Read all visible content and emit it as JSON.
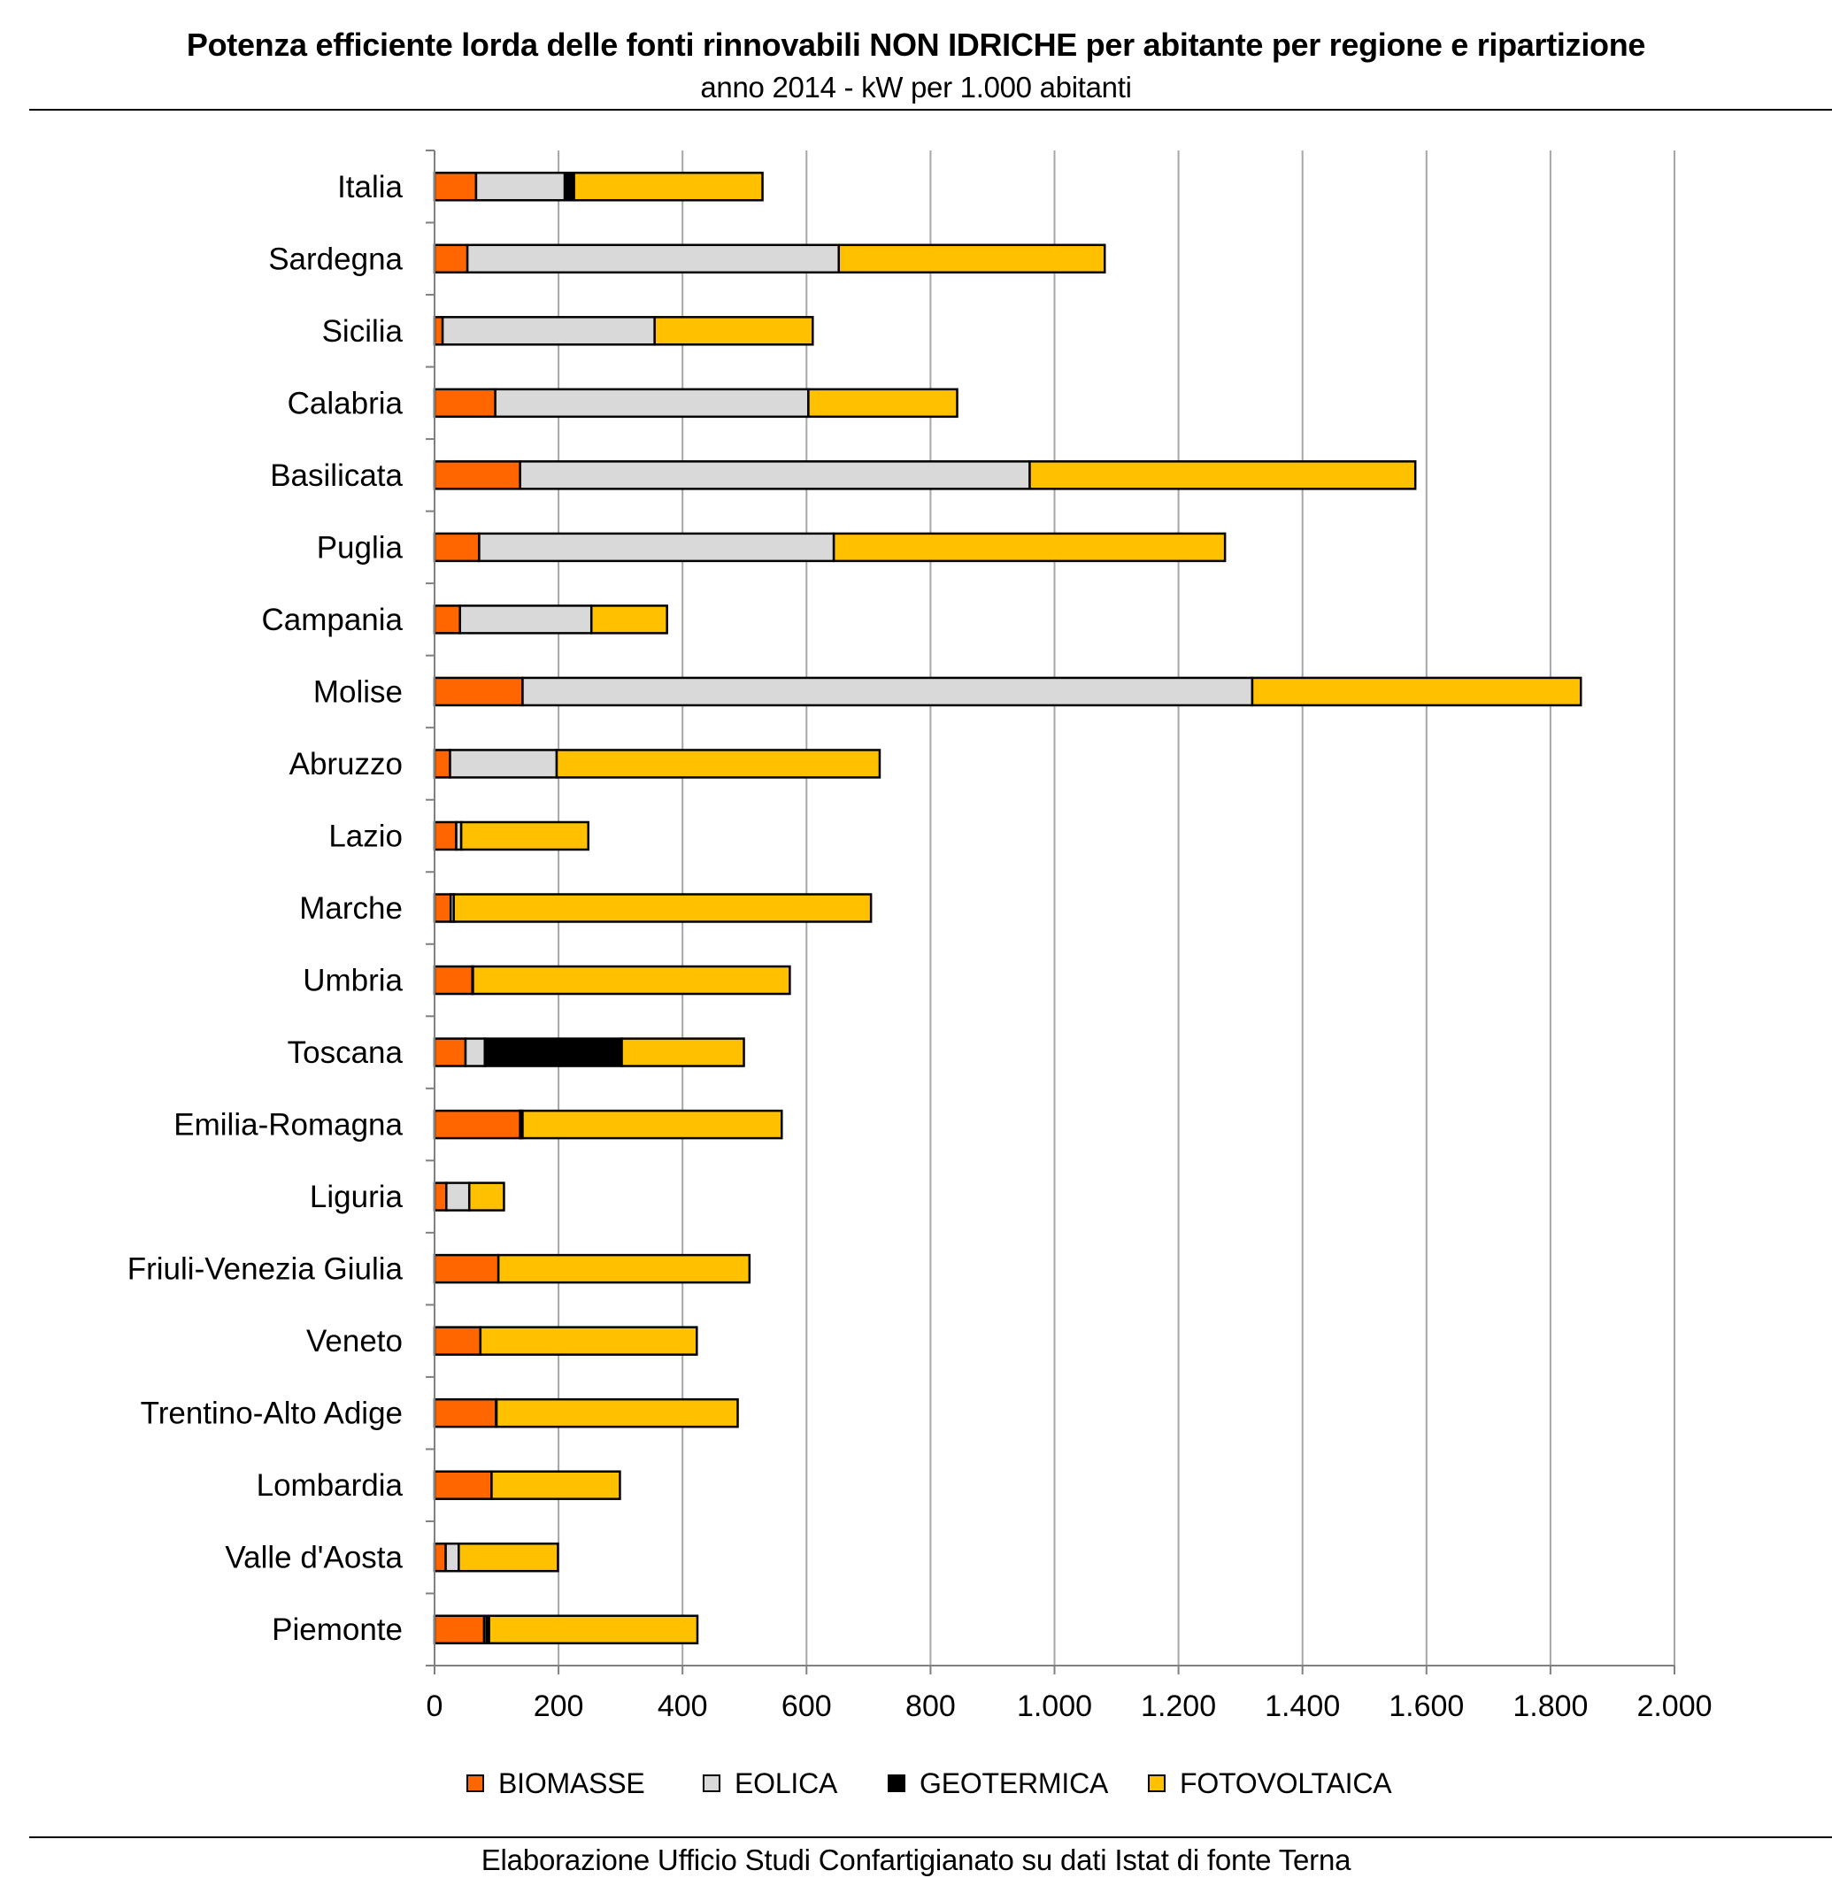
{
  "title": "Potenza efficiente lorda delle fonti rinnovabili NON IDRICHE per abitante per regione e ripartizione",
  "subtitle": "anno 2014 - kW per 1.000 abitanti",
  "footer": "Elaborazione Ufficio Studi Confartigianato su dati Istat di fonte Terna",
  "chart_data": {
    "type": "bar",
    "orientation": "horizontal",
    "stacked": true,
    "categories": [
      "Italia",
      "Sardegna",
      "Sicilia",
      "Calabria",
      "Basilicata",
      "Puglia",
      "Campania",
      "Molise",
      "Abruzzo",
      "Lazio",
      "Marche",
      "Umbria",
      "Toscana",
      "Emilia-Romagna",
      "Liguria",
      "Friuli-Venezia Giulia",
      "Veneto",
      "Trentino-Alto Adige",
      "Lombardia",
      "Valle d'Aosta",
      "Piemonte"
    ],
    "series": [
      {
        "name": "BIOMASSE",
        "color": "#ff6600",
        "values": [
          67,
          53,
          13,
          98,
          138,
          72,
          41,
          142,
          25,
          35,
          26,
          61,
          50,
          138,
          19,
          103,
          74,
          99,
          92,
          18,
          80
        ]
      },
      {
        "name": "EOLICA",
        "color": "#d9d9d9",
        "values": [
          143,
          599,
          342,
          505,
          822,
          572,
          212,
          1177,
          172,
          8,
          5,
          1,
          31,
          1,
          37,
          0,
          0,
          0,
          0,
          21,
          4
        ]
      },
      {
        "name": "GEOTERMICA",
        "color": "#000000",
        "values": [
          15,
          0,
          0,
          0,
          0,
          0,
          0,
          0,
          0,
          0,
          0,
          0,
          221,
          3,
          0,
          0,
          0,
          1,
          0,
          0,
          4
        ]
      },
      {
        "name": "FOTOVOLTAICA",
        "color": "#ffc000",
        "values": [
          304,
          429,
          255,
          240,
          622,
          631,
          122,
          530,
          521,
          205,
          673,
          511,
          197,
          418,
          56,
          405,
          349,
          389,
          207,
          160,
          336
        ]
      }
    ],
    "xlim": [
      0,
      2000
    ],
    "xticks": [
      0,
      200,
      400,
      600,
      800,
      1000,
      1200,
      1400,
      1600,
      1800,
      2000
    ],
    "xtick_labels": [
      "0",
      "200",
      "400",
      "600",
      "800",
      "1.000",
      "1.200",
      "1.400",
      "1.600",
      "1.800",
      "2.000"
    ],
    "grid": "vertical",
    "legend": "bottom"
  }
}
